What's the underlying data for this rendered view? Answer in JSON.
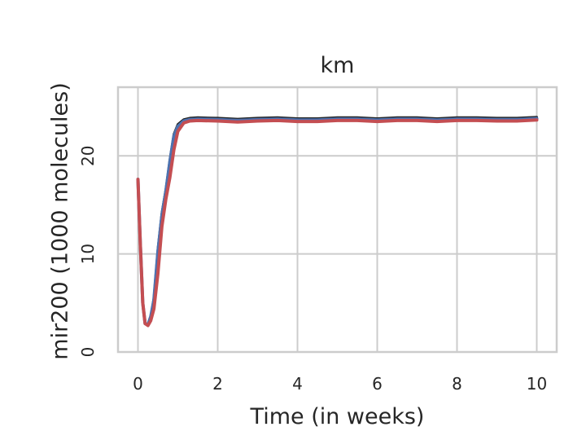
{
  "chart_data": {
    "type": "line",
    "title": "km",
    "xlabel": "Time (in weeks)",
    "ylabel": "mir200 (1000 molecules)",
    "xlim": [
      -0.5,
      10.5
    ],
    "ylim": [
      0,
      27
    ],
    "xticks": [
      0,
      2,
      4,
      6,
      8,
      10
    ],
    "xtick_labels": [
      "0",
      "2",
      "4",
      "6",
      "8",
      "10"
    ],
    "yticks": [
      0,
      10,
      20
    ],
    "ytick_labels": [
      "0",
      "10",
      "20"
    ],
    "grid": true,
    "legend": "none",
    "series": [
      {
        "color": "#1f1f1f",
        "points": [
          [
            0,
            17.6
          ],
          [
            0.06,
            11
          ],
          [
            0.12,
            5
          ],
          [
            0.18,
            2.9
          ],
          [
            0.25,
            2.8
          ],
          [
            0.32,
            3.6
          ],
          [
            0.4,
            5.5
          ],
          [
            0.5,
            10.5
          ],
          [
            0.6,
            14.2
          ],
          [
            0.7,
            16.6
          ],
          [
            0.8,
            19.6
          ],
          [
            0.9,
            22.2
          ],
          [
            1.0,
            23.2
          ],
          [
            1.15,
            23.7
          ],
          [
            1.3,
            23.85
          ],
          [
            1.5,
            23.9
          ],
          [
            2.0,
            23.85
          ],
          [
            2.5,
            23.75
          ],
          [
            3.0,
            23.85
          ],
          [
            3.5,
            23.9
          ],
          [
            4.0,
            23.8
          ],
          [
            4.5,
            23.8
          ],
          [
            5.0,
            23.9
          ],
          [
            5.5,
            23.9
          ],
          [
            6.0,
            23.8
          ],
          [
            6.5,
            23.9
          ],
          [
            7.0,
            23.9
          ],
          [
            7.5,
            23.8
          ],
          [
            8.0,
            23.9
          ],
          [
            8.5,
            23.9
          ],
          [
            9.0,
            23.85
          ],
          [
            9.5,
            23.85
          ],
          [
            10.0,
            23.95
          ]
        ]
      },
      {
        "color": "#4c72b0",
        "points": [
          [
            0,
            17.6
          ],
          [
            0.06,
            11
          ],
          [
            0.12,
            5
          ],
          [
            0.18,
            2.9
          ],
          [
            0.25,
            2.8
          ],
          [
            0.32,
            3.6
          ],
          [
            0.4,
            5.3
          ],
          [
            0.5,
            10.2
          ],
          [
            0.6,
            13.9
          ],
          [
            0.7,
            16.4
          ],
          [
            0.8,
            19.4
          ],
          [
            0.9,
            22.0
          ],
          [
            1.0,
            23.0
          ],
          [
            1.15,
            23.55
          ],
          [
            1.3,
            23.7
          ],
          [
            1.5,
            23.75
          ],
          [
            2.0,
            23.7
          ],
          [
            2.5,
            23.6
          ],
          [
            3.0,
            23.7
          ],
          [
            3.5,
            23.75
          ],
          [
            4.0,
            23.65
          ],
          [
            4.5,
            23.65
          ],
          [
            5.0,
            23.75
          ],
          [
            5.5,
            23.75
          ],
          [
            6.0,
            23.65
          ],
          [
            6.5,
            23.75
          ],
          [
            7.0,
            23.75
          ],
          [
            7.5,
            23.65
          ],
          [
            8.0,
            23.75
          ],
          [
            8.5,
            23.75
          ],
          [
            9.0,
            23.7
          ],
          [
            9.5,
            23.7
          ],
          [
            10.0,
            23.8
          ]
        ]
      },
      {
        "color": "#c44e52",
        "points": [
          [
            0,
            17.6
          ],
          [
            0.06,
            11
          ],
          [
            0.12,
            5
          ],
          [
            0.18,
            2.9
          ],
          [
            0.25,
            2.7
          ],
          [
            0.32,
            3.2
          ],
          [
            0.4,
            4.4
          ],
          [
            0.5,
            8.0
          ],
          [
            0.6,
            12.8
          ],
          [
            0.7,
            15.6
          ],
          [
            0.8,
            17.8
          ],
          [
            0.9,
            20.6
          ],
          [
            1.0,
            22.5
          ],
          [
            1.15,
            23.35
          ],
          [
            1.3,
            23.55
          ],
          [
            1.5,
            23.6
          ],
          [
            2.0,
            23.55
          ],
          [
            2.5,
            23.45
          ],
          [
            3.0,
            23.55
          ],
          [
            3.5,
            23.6
          ],
          [
            4.0,
            23.5
          ],
          [
            4.5,
            23.5
          ],
          [
            5.0,
            23.6
          ],
          [
            5.5,
            23.6
          ],
          [
            6.0,
            23.5
          ],
          [
            6.5,
            23.6
          ],
          [
            7.0,
            23.6
          ],
          [
            7.5,
            23.5
          ],
          [
            8.0,
            23.6
          ],
          [
            8.5,
            23.6
          ],
          [
            9.0,
            23.55
          ],
          [
            9.5,
            23.55
          ],
          [
            10.0,
            23.65
          ]
        ]
      }
    ]
  }
}
